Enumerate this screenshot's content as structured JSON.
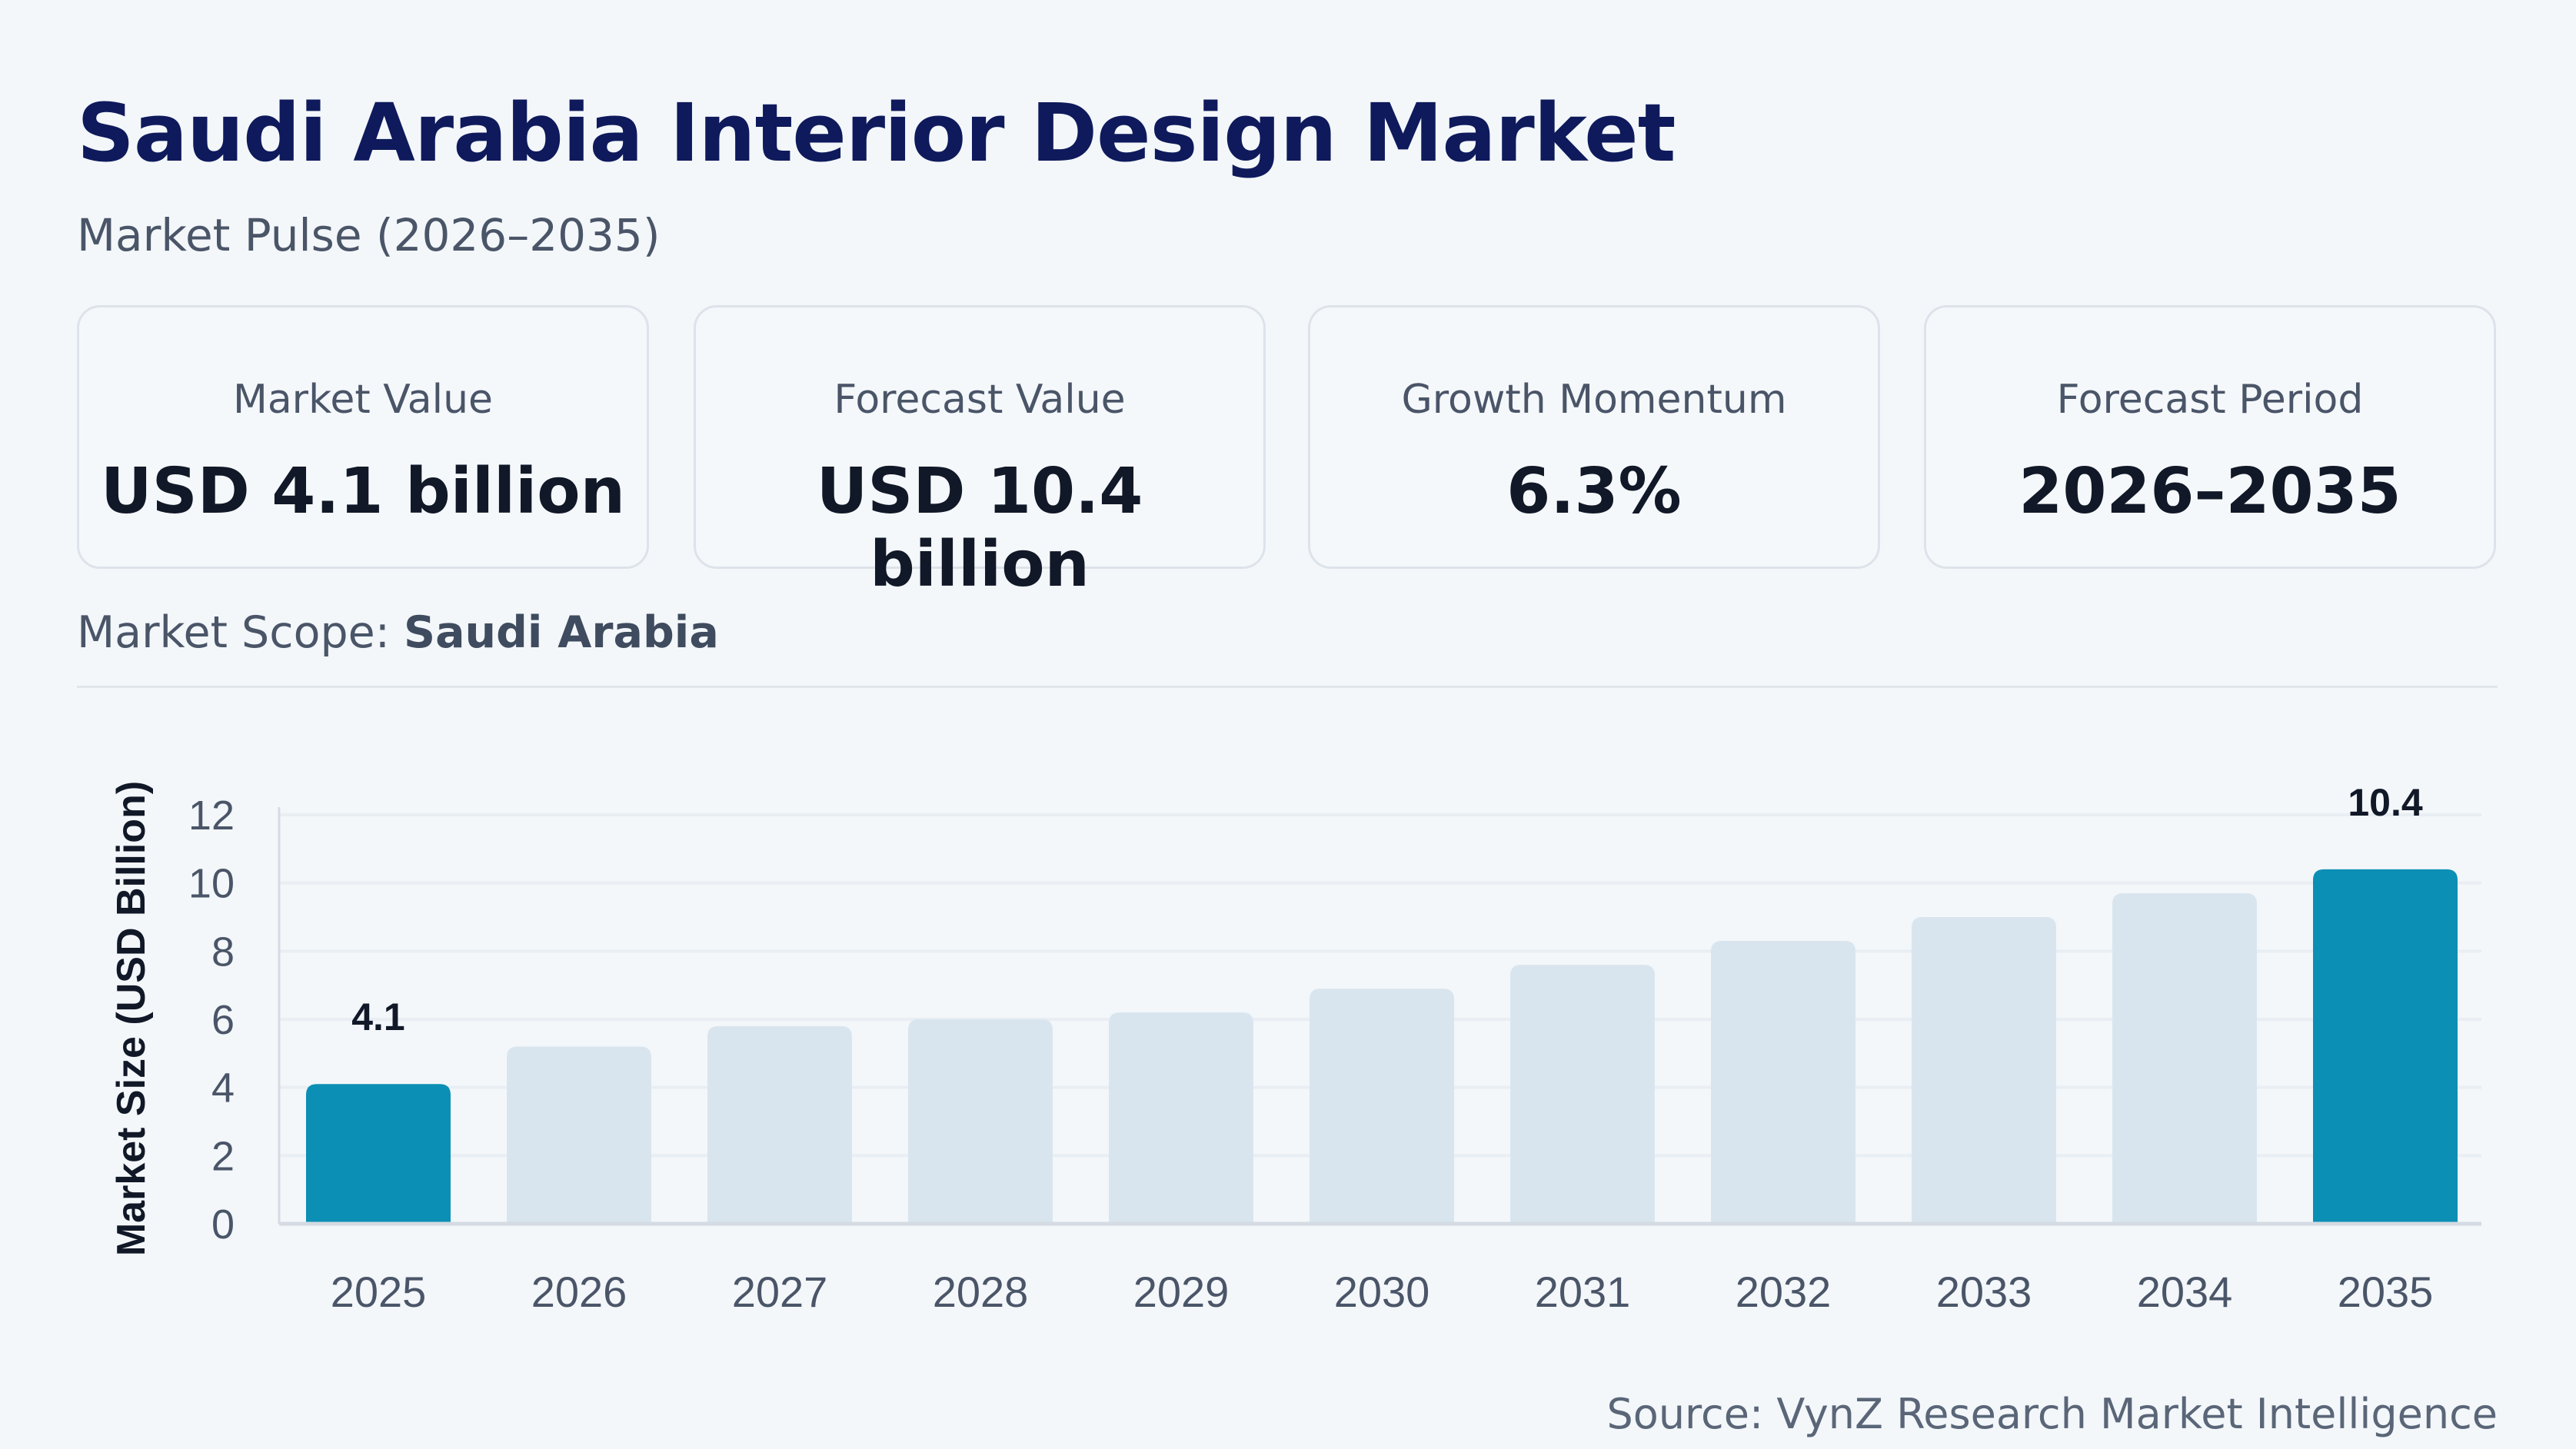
{
  "header": {
    "title": "Saudi Arabia Interior Design Market",
    "subtitle": "Market Pulse (2026–2035)"
  },
  "cards": [
    {
      "label": "Market Value",
      "value": "USD 4.1 billion"
    },
    {
      "label": "Forecast Value",
      "value": "USD 10.4 billion"
    },
    {
      "label": "Growth Momentum",
      "value": "6.3%"
    },
    {
      "label": "Forecast Period",
      "value": "2026–2035"
    }
  ],
  "scope": {
    "label": "Market Scope:",
    "value": "Saudi Arabia"
  },
  "source": "Source: VynZ Research Market Intelligence",
  "colors": {
    "highlight": "#0c8fb5",
    "bar": "#d9e5ee",
    "title": "#0f1a5c"
  },
  "chart_data": {
    "type": "bar",
    "categories": [
      "2025",
      "2026",
      "2027",
      "2028",
      "2029",
      "2030",
      "2031",
      "2032",
      "2033",
      "2034",
      "2035"
    ],
    "values": [
      4.1,
      5.2,
      5.8,
      6.0,
      6.2,
      6.9,
      7.6,
      8.3,
      9.0,
      9.7,
      10.4
    ],
    "highlighted": [
      "2025",
      "2035"
    ],
    "data_labels": {
      "2025": "4.1",
      "2035": "10.4"
    },
    "ylabel": "Market Size (USD Billion)",
    "xlabel": "",
    "ylim": [
      0,
      12
    ],
    "yticks": [
      "0",
      "2",
      "4",
      "6",
      "8",
      "10",
      "12"
    ],
    "grid": true
  }
}
